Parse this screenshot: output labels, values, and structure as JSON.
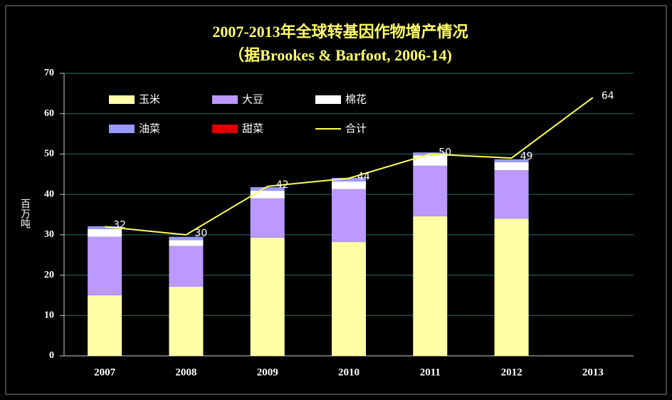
{
  "chart_data": {
    "type": "bar",
    "title": "2007-2013年全球转基因作物增产情况",
    "subtitle": "（据Brookes & Barfoot, 2006-14)",
    "ylabel": "百万吨",
    "categories": [
      "2007",
      "2008",
      "2009",
      "2010",
      "2011",
      "2012",
      "2013"
    ],
    "series": [
      {
        "name": "玉米",
        "color": "#ffffa6",
        "values": [
          15.0,
          17.1,
          29.3,
          28.2,
          34.6,
          34.0,
          null
        ]
      },
      {
        "name": "大豆",
        "color": "#bb99ff",
        "values": [
          14.5,
          10.1,
          9.7,
          13.1,
          12.5,
          12.0,
          null
        ]
      },
      {
        "name": "棉花",
        "color": "#ffffff",
        "values": [
          1.9,
          1.5,
          1.9,
          1.9,
          2.6,
          2.0,
          null
        ]
      },
      {
        "name": "油菜",
        "color": "#9999ff",
        "values": [
          0.7,
          0.8,
          0.9,
          0.9,
          0.7,
          0.7,
          null
        ]
      },
      {
        "name": "甜菜",
        "color": "#dd0000",
        "values": [
          0,
          0,
          0,
          0,
          0,
          0,
          null
        ]
      },
      {
        "name": "合计",
        "color": "#ffff55",
        "type": "line",
        "values": [
          32,
          30,
          42,
          44,
          50,
          49,
          64
        ]
      }
    ],
    "ylim": [
      0,
      70
    ],
    "yticks": [
      0,
      10,
      20,
      30,
      40,
      50,
      60,
      70
    ],
    "grid": true
  }
}
